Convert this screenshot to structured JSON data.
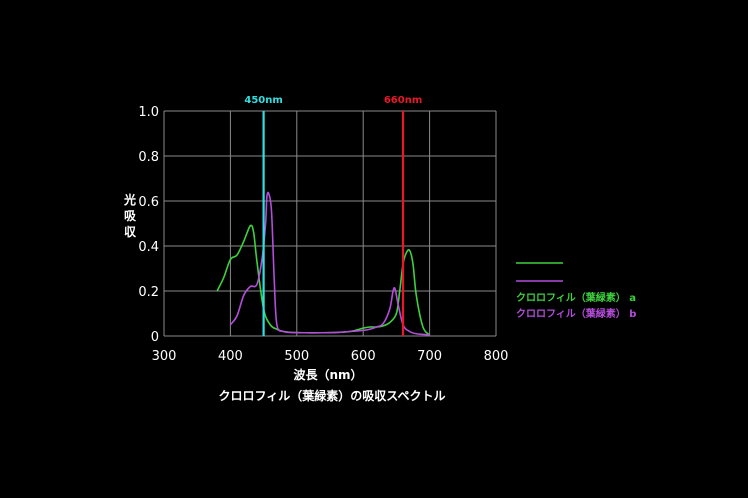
{
  "chart_data": {
    "type": "line",
    "title": "クロロフィル（葉緑素）の吸収スペクトル",
    "xlabel": "波長（nm）",
    "ylabel": "光吸収",
    "xlim": [
      300,
      800
    ],
    "ylim": [
      0,
      1.0
    ],
    "x_ticks": [
      "300",
      "400",
      "500",
      "600",
      "700",
      "800"
    ],
    "y_ticks": [
      "0",
      "0.2",
      "0.4",
      "0.6",
      "0.8",
      "1.0"
    ],
    "grid": true,
    "legend_position": "right",
    "series": [
      {
        "name": "クロロフィル（葉緑素） a",
        "color": "#3dd13d",
        "points": [
          [
            380,
            0.2
          ],
          [
            390,
            0.26
          ],
          [
            400,
            0.34
          ],
          [
            410,
            0.36
          ],
          [
            420,
            0.42
          ],
          [
            430,
            0.49
          ],
          [
            435,
            0.46
          ],
          [
            440,
            0.33
          ],
          [
            450,
            0.12
          ],
          [
            460,
            0.05
          ],
          [
            470,
            0.03
          ],
          [
            480,
            0.02
          ],
          [
            500,
            0.015
          ],
          [
            550,
            0.015
          ],
          [
            580,
            0.02
          ],
          [
            600,
            0.035
          ],
          [
            610,
            0.04
          ],
          [
            620,
            0.04
          ],
          [
            630,
            0.045
          ],
          [
            640,
            0.06
          ],
          [
            650,
            0.1
          ],
          [
            655,
            0.2
          ],
          [
            660,
            0.32
          ],
          [
            665,
            0.37
          ],
          [
            670,
            0.38
          ],
          [
            675,
            0.32
          ],
          [
            680,
            0.18
          ],
          [
            690,
            0.04
          ],
          [
            700,
            0.005
          ]
        ]
      },
      {
        "name": "クロロフィル（葉緑素） b",
        "color": "#b44ddb",
        "points": [
          [
            400,
            0.05
          ],
          [
            410,
            0.09
          ],
          [
            420,
            0.18
          ],
          [
            430,
            0.22
          ],
          [
            440,
            0.23
          ],
          [
            448,
            0.35
          ],
          [
            453,
            0.5
          ],
          [
            455,
            0.62
          ],
          [
            458,
            0.63
          ],
          [
            462,
            0.55
          ],
          [
            466,
            0.25
          ],
          [
            470,
            0.05
          ],
          [
            480,
            0.02
          ],
          [
            500,
            0.015
          ],
          [
            550,
            0.015
          ],
          [
            580,
            0.02
          ],
          [
            600,
            0.025
          ],
          [
            610,
            0.03
          ],
          [
            620,
            0.04
          ],
          [
            630,
            0.055
          ],
          [
            640,
            0.12
          ],
          [
            645,
            0.2
          ],
          [
            648,
            0.21
          ],
          [
            652,
            0.15
          ],
          [
            660,
            0.05
          ],
          [
            670,
            0.02
          ],
          [
            680,
            0.01
          ],
          [
            700,
            0.005
          ]
        ]
      }
    ],
    "markers": [
      {
        "x": 450,
        "label": "450nm",
        "color": "#2ee0e0"
      },
      {
        "x": 660,
        "label": "660nm",
        "color": "#e8182a"
      }
    ]
  }
}
